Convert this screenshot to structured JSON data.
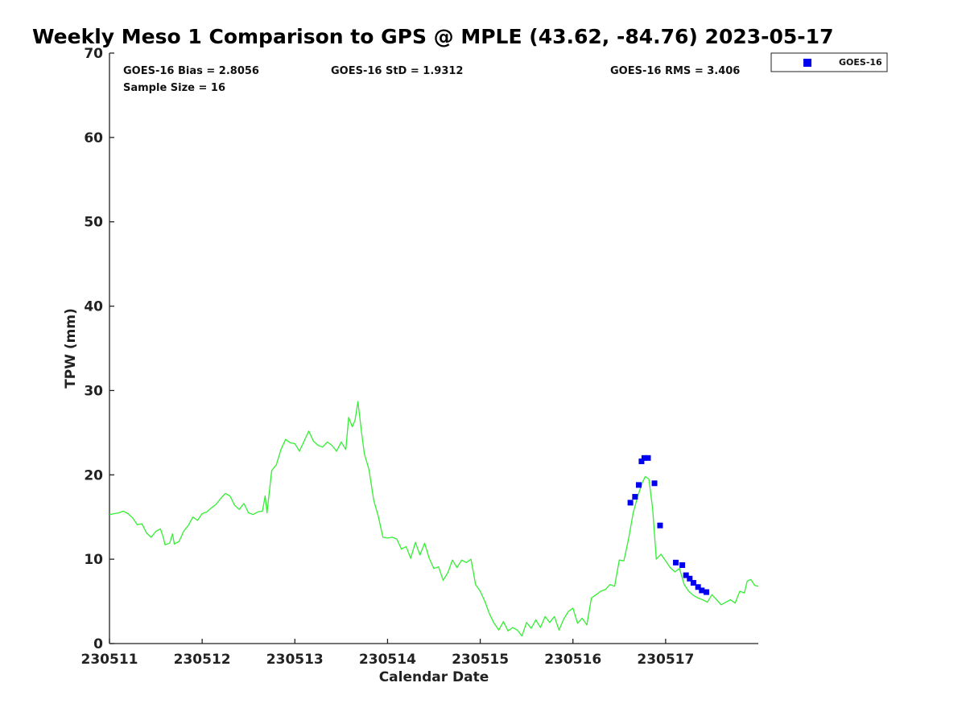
{
  "chart_data": {
    "type": "scatter",
    "title": "Weekly Meso 1 Comparison to GPS @ MPLE (43.62, -84.76) 2023-05-17",
    "xlabel": "Calendar Date",
    "ylabel": "TPW (mm)",
    "xlim": [
      0,
      7
    ],
    "ylim": [
      0,
      70
    ],
    "xticks": [
      0,
      1,
      2,
      3,
      4,
      5,
      6
    ],
    "xtick_labels": [
      "230511",
      "230512",
      "230513",
      "230514",
      "230515",
      "230516",
      "230517"
    ],
    "yticks": [
      0,
      10,
      20,
      30,
      40,
      50,
      60,
      70
    ],
    "ytick_labels": [
      "0",
      "10",
      "20",
      "30",
      "40",
      "50",
      "60",
      "70"
    ],
    "grid": false,
    "legend_position": "top-right (outside plot)",
    "stats": {
      "bias": "GOES-16 Bias = 2.8056",
      "std": "GOES-16 StD = 1.9312",
      "rms": "GOES-16 RMS = 3.406",
      "sample": "Sample Size = 16"
    },
    "series": [
      {
        "name": "GPS",
        "kind": "line",
        "color": "#33ee33",
        "points": [
          [
            0.0,
            15.3
          ],
          [
            0.1,
            15.5
          ],
          [
            0.15,
            15.7
          ],
          [
            0.2,
            15.4
          ],
          [
            0.25,
            14.9
          ],
          [
            0.3,
            14.1
          ],
          [
            0.35,
            14.2
          ],
          [
            0.4,
            13.1
          ],
          [
            0.45,
            12.6
          ],
          [
            0.5,
            13.3
          ],
          [
            0.55,
            13.6
          ],
          [
            0.58,
            12.6
          ],
          [
            0.6,
            11.7
          ],
          [
            0.65,
            11.9
          ],
          [
            0.68,
            13.0
          ],
          [
            0.7,
            11.8
          ],
          [
            0.75,
            12.1
          ],
          [
            0.8,
            13.3
          ],
          [
            0.85,
            14.0
          ],
          [
            0.9,
            15.0
          ],
          [
            0.95,
            14.6
          ],
          [
            1.0,
            15.4
          ],
          [
            1.05,
            15.6
          ],
          [
            1.1,
            16.1
          ],
          [
            1.15,
            16.5
          ],
          [
            1.2,
            17.2
          ],
          [
            1.25,
            17.8
          ],
          [
            1.3,
            17.5
          ],
          [
            1.35,
            16.4
          ],
          [
            1.4,
            15.9
          ],
          [
            1.45,
            16.6
          ],
          [
            1.5,
            15.5
          ],
          [
            1.55,
            15.3
          ],
          [
            1.6,
            15.6
          ],
          [
            1.65,
            15.7
          ],
          [
            1.68,
            17.5
          ],
          [
            1.7,
            15.5
          ],
          [
            1.75,
            20.5
          ],
          [
            1.8,
            21.2
          ],
          [
            1.85,
            23.0
          ],
          [
            1.9,
            24.2
          ],
          [
            1.95,
            23.8
          ],
          [
            2.0,
            23.7
          ],
          [
            2.05,
            22.8
          ],
          [
            2.1,
            24.0
          ],
          [
            2.15,
            25.2
          ],
          [
            2.2,
            24.0
          ],
          [
            2.25,
            23.5
          ],
          [
            2.3,
            23.3
          ],
          [
            2.35,
            23.9
          ],
          [
            2.4,
            23.5
          ],
          [
            2.45,
            22.8
          ],
          [
            2.5,
            23.9
          ],
          [
            2.55,
            23.0
          ],
          [
            2.58,
            26.8
          ],
          [
            2.62,
            25.7
          ],
          [
            2.65,
            26.5
          ],
          [
            2.68,
            28.7
          ],
          [
            2.72,
            25.0
          ],
          [
            2.75,
            22.5
          ],
          [
            2.8,
            20.6
          ],
          [
            2.85,
            17.0
          ],
          [
            2.9,
            15.1
          ],
          [
            2.95,
            12.6
          ],
          [
            3.0,
            12.5
          ],
          [
            3.05,
            12.6
          ],
          [
            3.1,
            12.4
          ],
          [
            3.15,
            11.2
          ],
          [
            3.2,
            11.5
          ],
          [
            3.25,
            10.1
          ],
          [
            3.3,
            12.0
          ],
          [
            3.35,
            10.5
          ],
          [
            3.4,
            11.9
          ],
          [
            3.45,
            10.1
          ],
          [
            3.5,
            8.9
          ],
          [
            3.55,
            9.1
          ],
          [
            3.6,
            7.5
          ],
          [
            3.65,
            8.4
          ],
          [
            3.7,
            9.9
          ],
          [
            3.75,
            9.0
          ],
          [
            3.8,
            9.9
          ],
          [
            3.85,
            9.6
          ],
          [
            3.9,
            10.0
          ],
          [
            3.95,
            7.0
          ],
          [
            4.0,
            6.2
          ],
          [
            4.05,
            5.0
          ],
          [
            4.1,
            3.5
          ],
          [
            4.15,
            2.4
          ],
          [
            4.2,
            1.6
          ],
          [
            4.25,
            2.6
          ],
          [
            4.3,
            1.5
          ],
          [
            4.35,
            1.9
          ],
          [
            4.4,
            1.6
          ],
          [
            4.45,
            0.9
          ],
          [
            4.5,
            2.5
          ],
          [
            4.55,
            1.8
          ],
          [
            4.6,
            2.8
          ],
          [
            4.65,
            1.9
          ],
          [
            4.7,
            3.2
          ],
          [
            4.75,
            2.5
          ],
          [
            4.8,
            3.2
          ],
          [
            4.85,
            1.6
          ],
          [
            4.9,
            2.9
          ],
          [
            4.95,
            3.8
          ],
          [
            5.0,
            4.2
          ],
          [
            5.05,
            2.4
          ],
          [
            5.1,
            3.0
          ],
          [
            5.15,
            2.2
          ],
          [
            5.2,
            5.4
          ],
          [
            5.25,
            5.8
          ],
          [
            5.3,
            6.2
          ],
          [
            5.35,
            6.4
          ],
          [
            5.4,
            7.0
          ],
          [
            5.45,
            6.8
          ],
          [
            5.5,
            9.9
          ],
          [
            5.55,
            9.8
          ],
          [
            5.6,
            12.4
          ],
          [
            5.65,
            15.5
          ],
          [
            5.7,
            17.5
          ],
          [
            5.75,
            19.1
          ],
          [
            5.78,
            19.8
          ],
          [
            5.82,
            19.5
          ],
          [
            5.86,
            16.0
          ],
          [
            5.9,
            10.0
          ],
          [
            5.95,
            10.6
          ],
          [
            6.0,
            9.8
          ],
          [
            6.05,
            9.0
          ],
          [
            6.1,
            8.5
          ],
          [
            6.15,
            8.9
          ],
          [
            6.2,
            7.0
          ],
          [
            6.25,
            6.2
          ],
          [
            6.3,
            5.7
          ],
          [
            6.35,
            5.4
          ],
          [
            6.4,
            5.2
          ],
          [
            6.45,
            4.9
          ],
          [
            6.5,
            5.8
          ],
          [
            6.55,
            5.2
          ],
          [
            6.6,
            4.6
          ],
          [
            6.65,
            4.9
          ],
          [
            6.7,
            5.2
          ],
          [
            6.75,
            4.8
          ],
          [
            6.8,
            6.2
          ],
          [
            6.85,
            6.0
          ],
          [
            6.88,
            7.4
          ],
          [
            6.92,
            7.6
          ],
          [
            6.96,
            6.9
          ],
          [
            7.0,
            6.8
          ]
        ]
      },
      {
        "name": "GOES-16",
        "kind": "scatter",
        "color": "#0000ee",
        "marker": "square",
        "points": [
          [
            5.62,
            16.7
          ],
          [
            5.67,
            17.4
          ],
          [
            5.71,
            18.8
          ],
          [
            5.74,
            21.6
          ],
          [
            5.77,
            22.0
          ],
          [
            5.81,
            22.0
          ],
          [
            5.88,
            19.0
          ],
          [
            5.94,
            14.0
          ],
          [
            6.11,
            9.6
          ],
          [
            6.18,
            9.3
          ],
          [
            6.22,
            8.1
          ],
          [
            6.26,
            7.7
          ],
          [
            6.3,
            7.2
          ],
          [
            6.35,
            6.7
          ],
          [
            6.39,
            6.3
          ],
          [
            6.44,
            6.1
          ]
        ]
      }
    ]
  }
}
